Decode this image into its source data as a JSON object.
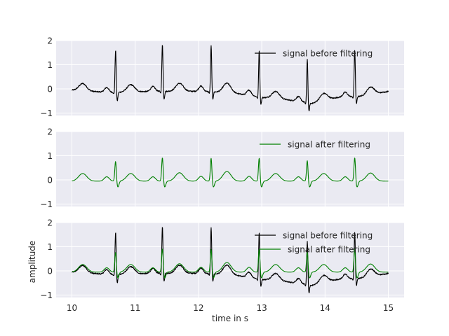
{
  "figure": {
    "background": "#ffffff",
    "axes_facecolor": "#eaeaf2",
    "grid_color": "#ffffff",
    "text_color": "#262626"
  },
  "chart_data": [
    {
      "type": "line",
      "xlim": [
        9.75,
        15.25
      ],
      "ylim": [
        -1.1,
        2.0
      ],
      "yticks": [
        -1,
        0,
        1,
        2
      ],
      "xticks": [
        10,
        11,
        12,
        13,
        14,
        15
      ],
      "show_xticklabels": false,
      "grid": true,
      "xlabel": "",
      "ylabel": "",
      "legend": {
        "location": "upper right",
        "entries": [
          "signal before filtering"
        ]
      },
      "series": [
        {
          "name": "signal before filtering",
          "kind": "raw",
          "color": "#000000"
        }
      ]
    },
    {
      "type": "line",
      "xlim": [
        9.75,
        15.25
      ],
      "ylim": [
        -1.1,
        2.0
      ],
      "yticks": [
        -1,
        0,
        1,
        2
      ],
      "xticks": [
        10,
        11,
        12,
        13,
        14,
        15
      ],
      "show_xticklabels": false,
      "grid": true,
      "xlabel": "",
      "ylabel": "",
      "legend": {
        "location": "upper right",
        "entries": [
          "signal after filtering"
        ]
      },
      "series": [
        {
          "name": "signal after filtering",
          "kind": "filtered",
          "color": "#008000"
        }
      ]
    },
    {
      "type": "line",
      "xlim": [
        9.75,
        15.25
      ],
      "ylim": [
        -1.1,
        2.0
      ],
      "yticks": [
        -1,
        0,
        1,
        2
      ],
      "xticks": [
        10,
        11,
        12,
        13,
        14,
        15
      ],
      "show_xticklabels": true,
      "grid": true,
      "xlabel": "time in s",
      "ylabel": "amplitude",
      "legend": {
        "location": "upper right",
        "entries": [
          "signal before filtering",
          "signal after filtering"
        ]
      },
      "series": [
        {
          "name": "signal before filtering",
          "kind": "raw",
          "color": "#000000"
        },
        {
          "name": "signal after filtering",
          "kind": "filtered",
          "color": "#008000"
        }
      ]
    }
  ],
  "ecg": {
    "t_start": 10.0,
    "t_end": 15.0,
    "r_peaks": [
      {
        "t": 10.69,
        "raw": 1.62,
        "filtered": 0.85,
        "s": -0.6
      },
      {
        "t": 11.43,
        "raw": 1.87,
        "filtered": 1.0,
        "s": -0.5
      },
      {
        "t": 12.2,
        "raw": 1.8,
        "filtered": 0.98,
        "s": -0.5
      },
      {
        "t": 12.96,
        "raw": 1.6,
        "filtered": 0.98,
        "s": -0.7
      },
      {
        "t": 13.72,
        "raw": 1.25,
        "filtered": 0.88,
        "s": -1.0
      },
      {
        "t": 14.47,
        "raw": 1.65,
        "filtered": 1.0,
        "s": -0.7
      }
    ],
    "p_waves": [
      {
        "t": 10.55,
        "amp": 0.2
      },
      {
        "t": 11.28,
        "amp": 0.2
      },
      {
        "t": 12.04,
        "amp": 0.22
      },
      {
        "t": 12.8,
        "amp": 0.22
      },
      {
        "t": 13.58,
        "amp": 0.2
      },
      {
        "t": 14.32,
        "amp": 0.2
      }
    ],
    "t_waves": [
      {
        "t": 10.17,
        "amp": 0.3
      },
      {
        "t": 10.93,
        "amp": 0.3
      },
      {
        "t": 11.7,
        "amp": 0.33
      },
      {
        "t": 12.45,
        "amp": 0.38
      },
      {
        "t": 13.22,
        "amp": 0.3
      },
      {
        "t": 13.98,
        "amp": 0.3
      },
      {
        "t": 14.72,
        "amp": 0.32
      }
    ],
    "raw_baseline": [
      {
        "t": 10.0,
        "v": -0.05
      },
      {
        "t": 10.6,
        "v": -0.15
      },
      {
        "t": 11.3,
        "v": -0.1
      },
      {
        "t": 12.0,
        "v": -0.1
      },
      {
        "t": 12.5,
        "v": -0.15
      },
      {
        "t": 13.0,
        "v": -0.35
      },
      {
        "t": 13.4,
        "v": -0.45
      },
      {
        "t": 13.8,
        "v": -0.6
      },
      {
        "t": 14.2,
        "v": -0.35
      },
      {
        "t": 14.6,
        "v": -0.3
      },
      {
        "t": 15.0,
        "v": -0.1
      }
    ]
  }
}
